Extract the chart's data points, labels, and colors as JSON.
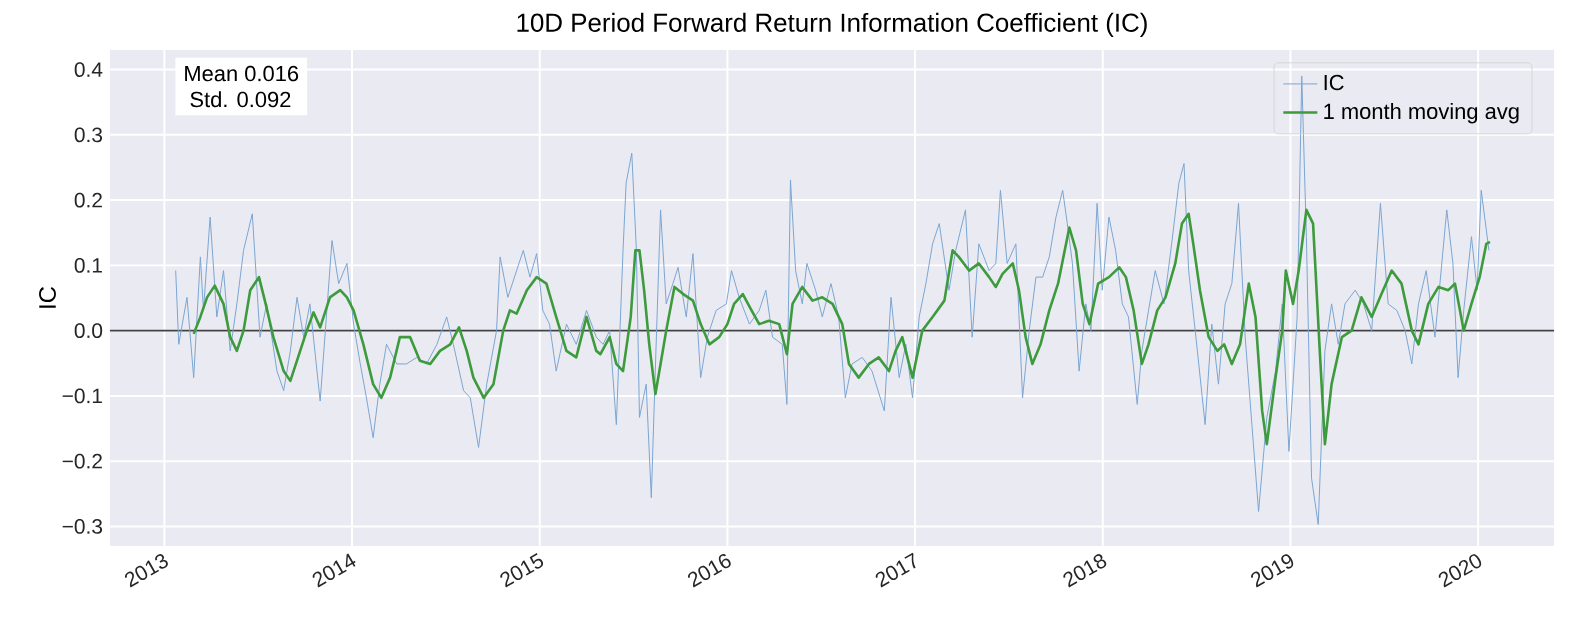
{
  "chart_data": {
    "type": "line",
    "title": "10D Period Forward Return Information Coefficient (IC)",
    "ylabel": "IC",
    "annotations": [
      "Mean 0.016",
      " Std. 0.092"
    ],
    "xlim": [
      "2012-09-17",
      "2020-05-28"
    ],
    "xticks": [
      "2013",
      "2014",
      "2015",
      "2016",
      "2017",
      "2018",
      "2019",
      "2020"
    ],
    "ylim": [
      -0.33,
      0.43
    ],
    "yticks": [
      {
        "value": -0.3,
        "label": "−0.3"
      },
      {
        "value": -0.2,
        "label": "−0.2"
      },
      {
        "value": -0.1,
        "label": "−0.1"
      },
      {
        "value": 0,
        "label": "0.0"
      },
      {
        "value": 0.1,
        "label": "0.1"
      },
      {
        "value": 0.2,
        "label": "0.2"
      },
      {
        "value": 0.3,
        "label": "0.3"
      },
      {
        "value": 0.4,
        "label": "0.4"
      }
    ],
    "grid": true,
    "legend": "top right",
    "ref_lines": [
      {
        "axis": "y",
        "value": 0,
        "color": "#404040"
      }
    ],
    "series": [
      {
        "name": "IC",
        "color": "#7aa6d2",
        "x": [
          "2013-01-23",
          "2013-01-29",
          "2013-02-14",
          "2013-02-27",
          "2013-03-12",
          "2013-03-18",
          "2013-03-31",
          "2013-04-13",
          "2013-04-26",
          "2013-05-09",
          "2013-05-22",
          "2013-06-04",
          "2013-06-21",
          "2013-07-06",
          "2013-07-19",
          "2013-08-08",
          "2013-08-21",
          "2013-09-03",
          "2013-09-16",
          "2013-09-29",
          "2013-10-11",
          "2013-10-31",
          "2013-11-13",
          "2013-11-23",
          "2013-12-06",
          "2013-12-22",
          "2014-01-04",
          "2014-01-17",
          "2014-01-29",
          "2014-02-11",
          "2014-02-24",
          "2014-03-09",
          "2014-03-29",
          "2014-04-17",
          "2014-05-07",
          "2014-05-26",
          "2014-06-15",
          "2014-07-04",
          "2014-07-17",
          "2014-08-06",
          "2014-08-19",
          "2014-09-04",
          "2014-09-20",
          "2014-10-09",
          "2014-10-16",
          "2014-10-31",
          "2014-11-17",
          "2014-11-30",
          "2014-12-13",
          "2014-12-26",
          "2015-01-07",
          "2015-01-20",
          "2015-02-02",
          "2015-02-22",
          "2015-03-13",
          "2015-04-02",
          "2015-04-21",
          "2015-05-04",
          "2015-05-17",
          "2015-05-30",
          "2015-06-12",
          "2015-06-18",
          "2015-06-29",
          "2015-07-08",
          "2015-07-14",
          "2015-07-27",
          "2015-08-06",
          "2015-08-15",
          "2015-08-24",
          "2015-09-04",
          "2015-09-17",
          "2015-09-27",
          "2015-10-13",
          "2015-10-26",
          "2015-11-10",
          "2015-11-23",
          "2015-12-10",
          "2015-12-30",
          "2016-01-09",
          "2016-01-24",
          "2016-02-13",
          "2016-03-03",
          "2016-03-16",
          "2016-03-29",
          "2016-04-17",
          "2016-04-26",
          "2016-05-03",
          "2016-05-13",
          "2016-05-26",
          "2016-06-04",
          "2016-06-21",
          "2016-07-04",
          "2016-07-21",
          "2016-08-05",
          "2016-08-18",
          "2016-08-31",
          "2016-09-20",
          "2016-10-09",
          "2016-11-02",
          "2016-11-15",
          "2016-12-01",
          "2016-12-14",
          "2016-12-27",
          "2017-01-09",
          "2017-01-22",
          "2017-02-04",
          "2017-02-17",
          "2017-03-08",
          "2017-03-21",
          "2017-04-09",
          "2017-04-22",
          "2017-05-05",
          "2017-05-25",
          "2017-06-07",
          "2017-06-16",
          "2017-06-29",
          "2017-07-16",
          "2017-07-29",
          "2017-08-11",
          "2017-08-24",
          "2017-09-06",
          "2017-09-19",
          "2017-10-02",
          "2017-10-15",
          "2017-10-24",
          "2017-11-03",
          "2017-11-16",
          "2017-11-29",
          "2017-12-09",
          "2017-12-21",
          "2017-12-31",
          "2018-01-13",
          "2018-01-26",
          "2018-02-08",
          "2018-02-20",
          "2018-03-09",
          "2018-03-18",
          "2018-03-31",
          "2018-04-13",
          "2018-04-30",
          "2018-05-15",
          "2018-05-29",
          "2018-06-08",
          "2018-06-17",
          "2018-07-04",
          "2018-07-19",
          "2018-08-01",
          "2018-08-14",
          "2018-08-27",
          "2018-09-09",
          "2018-09-22",
          "2018-10-05",
          "2018-10-18",
          "2018-10-31",
          "2018-11-16",
          "2018-12-03",
          "2018-12-16",
          "2018-12-29",
          "2019-01-14",
          "2019-01-23",
          "2019-02-01",
          "2019-02-11",
          "2019-02-24",
          "2019-03-09",
          "2019-03-22",
          "2019-04-04",
          "2019-04-17",
          "2019-05-07",
          "2019-05-23",
          "2019-06-08",
          "2019-06-25",
          "2019-07-10",
          "2019-07-27",
          "2019-08-12",
          "2019-08-25",
          "2019-09-07",
          "2019-09-22",
          "2019-10-09",
          "2019-11-01",
          "2019-11-13",
          "2019-11-23",
          "2019-12-04",
          "2019-12-19",
          "2019-12-30",
          "2020-01-07",
          "2020-01-17",
          "2020-01-22"
        ],
        "values": [
          0.092,
          -0.021,
          0.051,
          -0.072,
          0.113,
          0.031,
          0.174,
          0.021,
          0.092,
          -0.031,
          0.041,
          0.123,
          0.179,
          -0.01,
          0.041,
          -0.062,
          -0.092,
          -0.031,
          0.051,
          -0.01,
          0.041,
          -0.108,
          0.031,
          0.138,
          0.072,
          0.103,
          0.01,
          -0.051,
          -0.103,
          -0.164,
          -0.082,
          -0.021,
          -0.051,
          -0.051,
          -0.041,
          -0.051,
          -0.021,
          0.021,
          -0.021,
          -0.092,
          -0.103,
          -0.179,
          -0.082,
          0,
          0.113,
          0.051,
          0.092,
          0.123,
          0.082,
          0.118,
          0.031,
          0.01,
          -0.062,
          0.01,
          -0.021,
          0.031,
          -0.01,
          -0.021,
          0,
          -0.144,
          0.123,
          0.226,
          0.272,
          0.123,
          -0.133,
          -0.082,
          -0.256,
          -0.031,
          0.185,
          0.041,
          0.072,
          0.097,
          0.021,
          0.118,
          -0.072,
          -0.01,
          0.031,
          0.041,
          0.092,
          0.051,
          0.01,
          0.031,
          0.062,
          -0.01,
          -0.021,
          -0.113,
          0.231,
          0.092,
          0.041,
          0.103,
          0.062,
          0.021,
          0.072,
          0.021,
          -0.103,
          -0.051,
          -0.041,
          -0.062,
          -0.123,
          0.051,
          -0.072,
          -0.021,
          -0.103,
          0.021,
          0.072,
          0.133,
          0.164,
          0.062,
          0.123,
          0.185,
          -0.01,
          0.133,
          0.092,
          0.103,
          0.215,
          0.103,
          0.133,
          -0.103,
          0,
          0.082,
          0.082,
          0.113,
          0.174,
          0.215,
          0.164,
          0.103,
          -0.062,
          0.041,
          0,
          0.195,
          0.062,
          0.174,
          0.123,
          0.041,
          0.021,
          -0.113,
          -0.031,
          0.031,
          0.092,
          0.041,
          0.133,
          0.226,
          0.256,
          0.092,
          -0.031,
          -0.144,
          0.01,
          -0.082,
          0.041,
          0.072,
          0.195,
          -0.01,
          -0.144,
          -0.277,
          -0.133,
          -0.062,
          0.041,
          -0.185,
          0.021,
          0.39,
          0.144,
          -0.226,
          -0.297,
          -0.031,
          0.041,
          -0.021,
          0.041,
          0.062,
          0.041,
          0,
          0.195,
          0.041,
          0.031,
          0,
          -0.051,
          0.041,
          0.092,
          -0.01,
          0.185,
          0.103,
          -0.072,
          0.031,
          0.144,
          0.062,
          0.215,
          0.154,
          0.123
        ]
      },
      {
        "name": "1 month moving avg",
        "color": "#3d9a3d",
        "x": [
          "2013-02-27",
          "2013-03-12",
          "2013-03-25",
          "2013-04-09",
          "2013-04-26",
          "2013-05-09",
          "2013-05-22",
          "2013-06-04",
          "2013-06-17",
          "2013-07-04",
          "2013-07-17",
          "2013-08-01",
          "2013-08-21",
          "2013-09-03",
          "2013-09-18",
          "2013-10-05",
          "2013-10-18",
          "2013-10-31",
          "2013-11-19",
          "2013-12-09",
          "2013-12-22",
          "2014-01-04",
          "2014-01-23",
          "2014-02-11",
          "2014-02-27",
          "2014-03-16",
          "2014-04-04",
          "2014-04-24",
          "2014-05-13",
          "2014-06-02",
          "2014-06-21",
          "2014-07-11",
          "2014-07-28",
          "2014-08-12",
          "2014-08-25",
          "2014-09-14",
          "2014-10-03",
          "2014-10-22",
          "2014-11-04",
          "2014-11-17",
          "2014-12-07",
          "2014-12-26",
          "2015-01-14",
          "2015-02-02",
          "2015-02-22",
          "2015-03-13",
          "2015-04-02",
          "2015-04-21",
          "2015-04-29",
          "2015-05-17",
          "2015-05-30",
          "2015-06-12",
          "2015-06-27",
          "2015-07-06",
          "2015-07-14",
          "2015-07-23",
          "2015-08-02",
          "2015-08-14",
          "2015-08-24",
          "2015-09-04",
          "2015-09-20",
          "2015-10-07",
          "2015-10-26",
          "2015-11-10",
          "2015-11-27",
          "2015-12-16",
          "2016-01-01",
          "2016-01-14",
          "2016-01-31",
          "2016-02-17",
          "2016-03-03",
          "2016-03-22",
          "2016-04-11",
          "2016-04-26",
          "2016-05-07",
          "2016-05-26",
          "2016-06-15",
          "2016-07-04",
          "2016-07-24",
          "2016-08-12",
          "2016-08-25",
          "2016-09-13",
          "2016-10-03",
          "2016-10-22",
          "2016-11-11",
          "2016-11-24",
          "2016-12-07",
          "2016-12-27",
          "2017-01-15",
          "2017-02-04",
          "2017-02-27",
          "2017-03-15",
          "2017-03-27",
          "2017-04-16",
          "2017-05-05",
          "2017-05-25",
          "2017-06-07",
          "2017-06-20",
          "2017-07-10",
          "2017-07-22",
          "2017-08-04",
          "2017-08-17",
          "2017-09-02",
          "2017-09-19",
          "2017-10-06",
          "2017-10-28",
          "2017-11-10",
          "2017-11-23",
          "2017-12-06",
          "2017-12-23",
          "2018-01-13",
          "2018-02-02",
          "2018-02-15",
          "2018-03-02",
          "2018-03-18",
          "2018-03-31",
          "2018-04-17",
          "2018-05-03",
          "2018-05-22",
          "2018-06-04",
          "2018-06-17",
          "2018-06-26",
          "2018-07-09",
          "2018-07-26",
          "2018-08-12",
          "2018-08-25",
          "2018-09-09",
          "2018-09-25",
          "2018-10-12",
          "2018-10-25",
          "2018-11-07",
          "2018-11-16",
          "2018-12-03",
          "2018-12-16",
          "2018-12-23",
          "2019-01-06",
          "2019-01-17",
          "2019-02-01",
          "2019-02-14",
          "2019-02-27",
          "2019-03-09",
          "2019-03-22",
          "2019-04-11",
          "2019-04-30",
          "2019-05-19",
          "2019-06-08",
          "2019-06-27",
          "2019-07-17",
          "2019-08-05",
          "2019-08-25",
          "2019-09-07",
          "2019-09-26",
          "2019-10-16",
          "2019-11-04",
          "2019-11-17",
          "2019-12-04",
          "2019-12-19",
          "2020-01-04",
          "2020-01-17",
          "2020-01-24"
        ],
        "values": [
          -0.005,
          0.021,
          0.051,
          0.069,
          0.041,
          -0.01,
          -0.031,
          0,
          0.062,
          0.082,
          0.041,
          -0.01,
          -0.062,
          -0.077,
          -0.041,
          0,
          0.028,
          0.005,
          0.051,
          0.062,
          0.051,
          0.031,
          -0.021,
          -0.082,
          -0.103,
          -0.072,
          -0.01,
          -0.01,
          -0.046,
          -0.051,
          -0.031,
          -0.021,
          0.005,
          -0.031,
          -0.072,
          -0.103,
          -0.082,
          0,
          0.031,
          0.026,
          0.062,
          0.082,
          0.072,
          0.021,
          -0.031,
          -0.041,
          0.021,
          -0.031,
          -0.036,
          -0.01,
          -0.051,
          -0.062,
          0.021,
          0.123,
          0.123,
          0.062,
          -0.021,
          -0.097,
          -0.051,
          0,
          0.067,
          0.056,
          0.046,
          0.01,
          -0.021,
          -0.01,
          0.01,
          0.041,
          0.056,
          0.031,
          0.01,
          0.015,
          0.01,
          -0.036,
          0.041,
          0.067,
          0.046,
          0.051,
          0.041,
          0.01,
          -0.051,
          -0.072,
          -0.051,
          -0.041,
          -0.062,
          -0.031,
          -0.01,
          -0.072,
          0,
          0.021,
          0.046,
          0.123,
          0.113,
          0.092,
          0.103,
          0.082,
          0.067,
          0.087,
          0.103,
          0.062,
          -0.01,
          -0.051,
          -0.021,
          0.031,
          0.072,
          0.158,
          0.123,
          0.041,
          0.01,
          0.072,
          0.082,
          0.097,
          0.082,
          0.031,
          -0.051,
          -0.021,
          0.031,
          0.051,
          0.103,
          0.164,
          0.179,
          0.133,
          0.062,
          -0.01,
          -0.031,
          -0.021,
          -0.051,
          -0.021,
          0.072,
          0.021,
          -0.123,
          -0.174,
          -0.072,
          0,
          0.092,
          0.041,
          0.092,
          0.185,
          0.164,
          -0.031,
          -0.174,
          -0.082,
          -0.01,
          0,
          0.051,
          0.021,
          0.056,
          0.092,
          0.072,
          0,
          -0.021,
          0.041,
          0.067,
          0.062,
          0.072,
          0,
          0.041,
          0.082,
          0.133,
          0.136
        ]
      }
    ]
  }
}
